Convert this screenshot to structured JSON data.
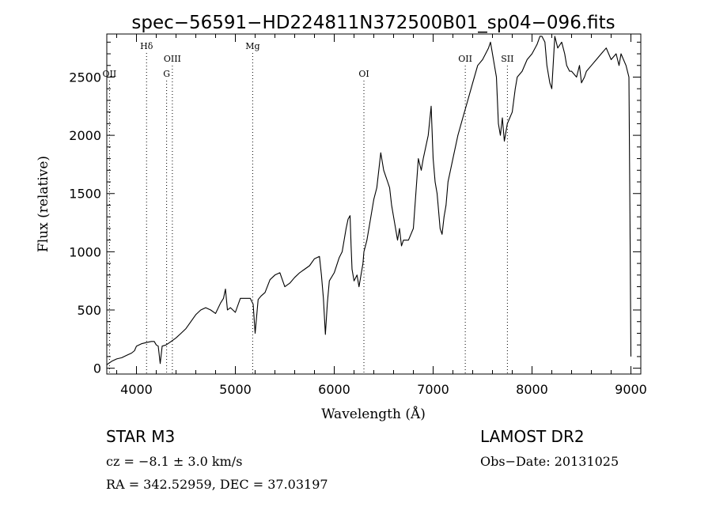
{
  "chart_data": {
    "type": "line",
    "title": "spec−56591−HD224811N372500B01_sp04−096.fits",
    "xlabel": "Wavelength (Å)",
    "ylabel": "Flux (relative)",
    "xlim": [
      3700,
      9100
    ],
    "ylim": [
      -50,
      2870
    ],
    "x_ticks": [
      4000,
      5000,
      6000,
      7000,
      8000,
      9000
    ],
    "y_ticks": [
      0,
      500,
      1000,
      1500,
      2000,
      2500
    ],
    "grid": false,
    "series": [
      {
        "x": [
          3700,
          3750,
          3800,
          3850,
          3900,
          3950,
          3980,
          4000,
          4050,
          4100,
          4150,
          4180,
          4200,
          4220,
          4240,
          4260,
          4300,
          4350,
          4400,
          4450,
          4500,
          4550,
          4600,
          4650,
          4700,
          4750,
          4800,
          4850,
          4880,
          4900,
          4920,
          4950,
          5000,
          5050,
          5100,
          5150,
          5180,
          5200,
          5230,
          5260,
          5300,
          5350,
          5400,
          5450,
          5500,
          5550,
          5600,
          5650,
          5700,
          5750,
          5800,
          5850,
          5870,
          5890,
          5910,
          5930,
          5950,
          6000,
          6050,
          6080,
          6100,
          6120,
          6140,
          6160,
          6170,
          6180,
          6200,
          6230,
          6250,
          6270,
          6290,
          6300,
          6330,
          6370,
          6400,
          6430,
          6450,
          6470,
          6500,
          6520,
          6540,
          6560,
          6580,
          6600,
          6620,
          6640,
          6660,
          6680,
          6700,
          6750,
          6800,
          6850,
          6880,
          6900,
          6950,
          6980,
          7000,
          7020,
          7040,
          7050,
          7070,
          7090,
          7110,
          7130,
          7150,
          7200,
          7250,
          7300,
          7350,
          7400,
          7450,
          7500,
          7530,
          7560,
          7580,
          7600,
          7620,
          7640,
          7660,
          7680,
          7700,
          7720,
          7750,
          7800,
          7830,
          7850,
          7900,
          7950,
          8000,
          8050,
          8080,
          8100,
          8130,
          8150,
          8180,
          8200,
          8230,
          8260,
          8300,
          8330,
          8350,
          8380,
          8400,
          8450,
          8480,
          8500,
          8530,
          8550,
          8600,
          8650,
          8700,
          8750,
          8800,
          8850,
          8880,
          8900,
          8950,
          8980,
          8990,
          9000
        ],
        "y": [
          30,
          60,
          80,
          90,
          110,
          130,
          150,
          190,
          210,
          220,
          230,
          230,
          200,
          190,
          40,
          190,
          200,
          230,
          260,
          300,
          340,
          400,
          460,
          500,
          520,
          500,
          470,
          560,
          600,
          680,
          500,
          520,
          480,
          600,
          600,
          600,
          550,
          300,
          590,
          620,
          650,
          760,
          800,
          820,
          700,
          730,
          780,
          820,
          850,
          880,
          940,
          960,
          800,
          600,
          290,
          560,
          750,
          820,
          950,
          1000,
          1100,
          1200,
          1280,
          1310,
          1050,
          850,
          750,
          800,
          700,
          800,
          900,
          1000,
          1100,
          1300,
          1450,
          1550,
          1700,
          1850,
          1700,
          1650,
          1600,
          1550,
          1400,
          1300,
          1200,
          1100,
          1200,
          1050,
          1100,
          1100,
          1200,
          1800,
          1700,
          1800,
          2000,
          2250,
          1800,
          1600,
          1500,
          1400,
          1200,
          1150,
          1300,
          1400,
          1600,
          1800,
          2000,
          2150,
          2300,
          2450,
          2600,
          2650,
          2700,
          2750,
          2800,
          2700,
          2600,
          2500,
          2100,
          2000,
          2150,
          1950,
          2100,
          2200,
          2400,
          2500,
          2550,
          2650,
          2700,
          2780,
          2850,
          2850,
          2800,
          2600,
          2450,
          2400,
          2850,
          2750,
          2800,
          2700,
          2600,
          2550,
          2550,
          2500,
          2600,
          2450,
          2500,
          2550,
          2600,
          2650,
          2700,
          2750,
          2650,
          2700,
          2600,
          2700,
          2600,
          2500,
          1300,
          100
        ]
      }
    ],
    "line_marks": [
      {
        "label": "OII",
        "x": 3727,
        "row": 2
      },
      {
        "label": "Hδ",
        "x": 4102,
        "row": 0
      },
      {
        "label": "G",
        "x": 4305,
        "row": 2
      },
      {
        "label": "OIII",
        "x": 4363,
        "row": 1
      },
      {
        "label": "Mg",
        "x": 5175,
        "row": 0
      },
      {
        "label": "OI",
        "x": 6300,
        "row": 2
      },
      {
        "label": "OII",
        "x": 7325,
        "row": 1
      },
      {
        "label": "SII",
        "x": 7751,
        "row": 1
      }
    ]
  },
  "info": {
    "star_class": "STAR    M3",
    "survey": "LAMOST DR2",
    "cz": "cz = −8.1 ± 3.0 km/s",
    "obs_date": "Obs−Date: 20131025",
    "coords": "RA = 342.52959, DEC =  37.03197"
  }
}
